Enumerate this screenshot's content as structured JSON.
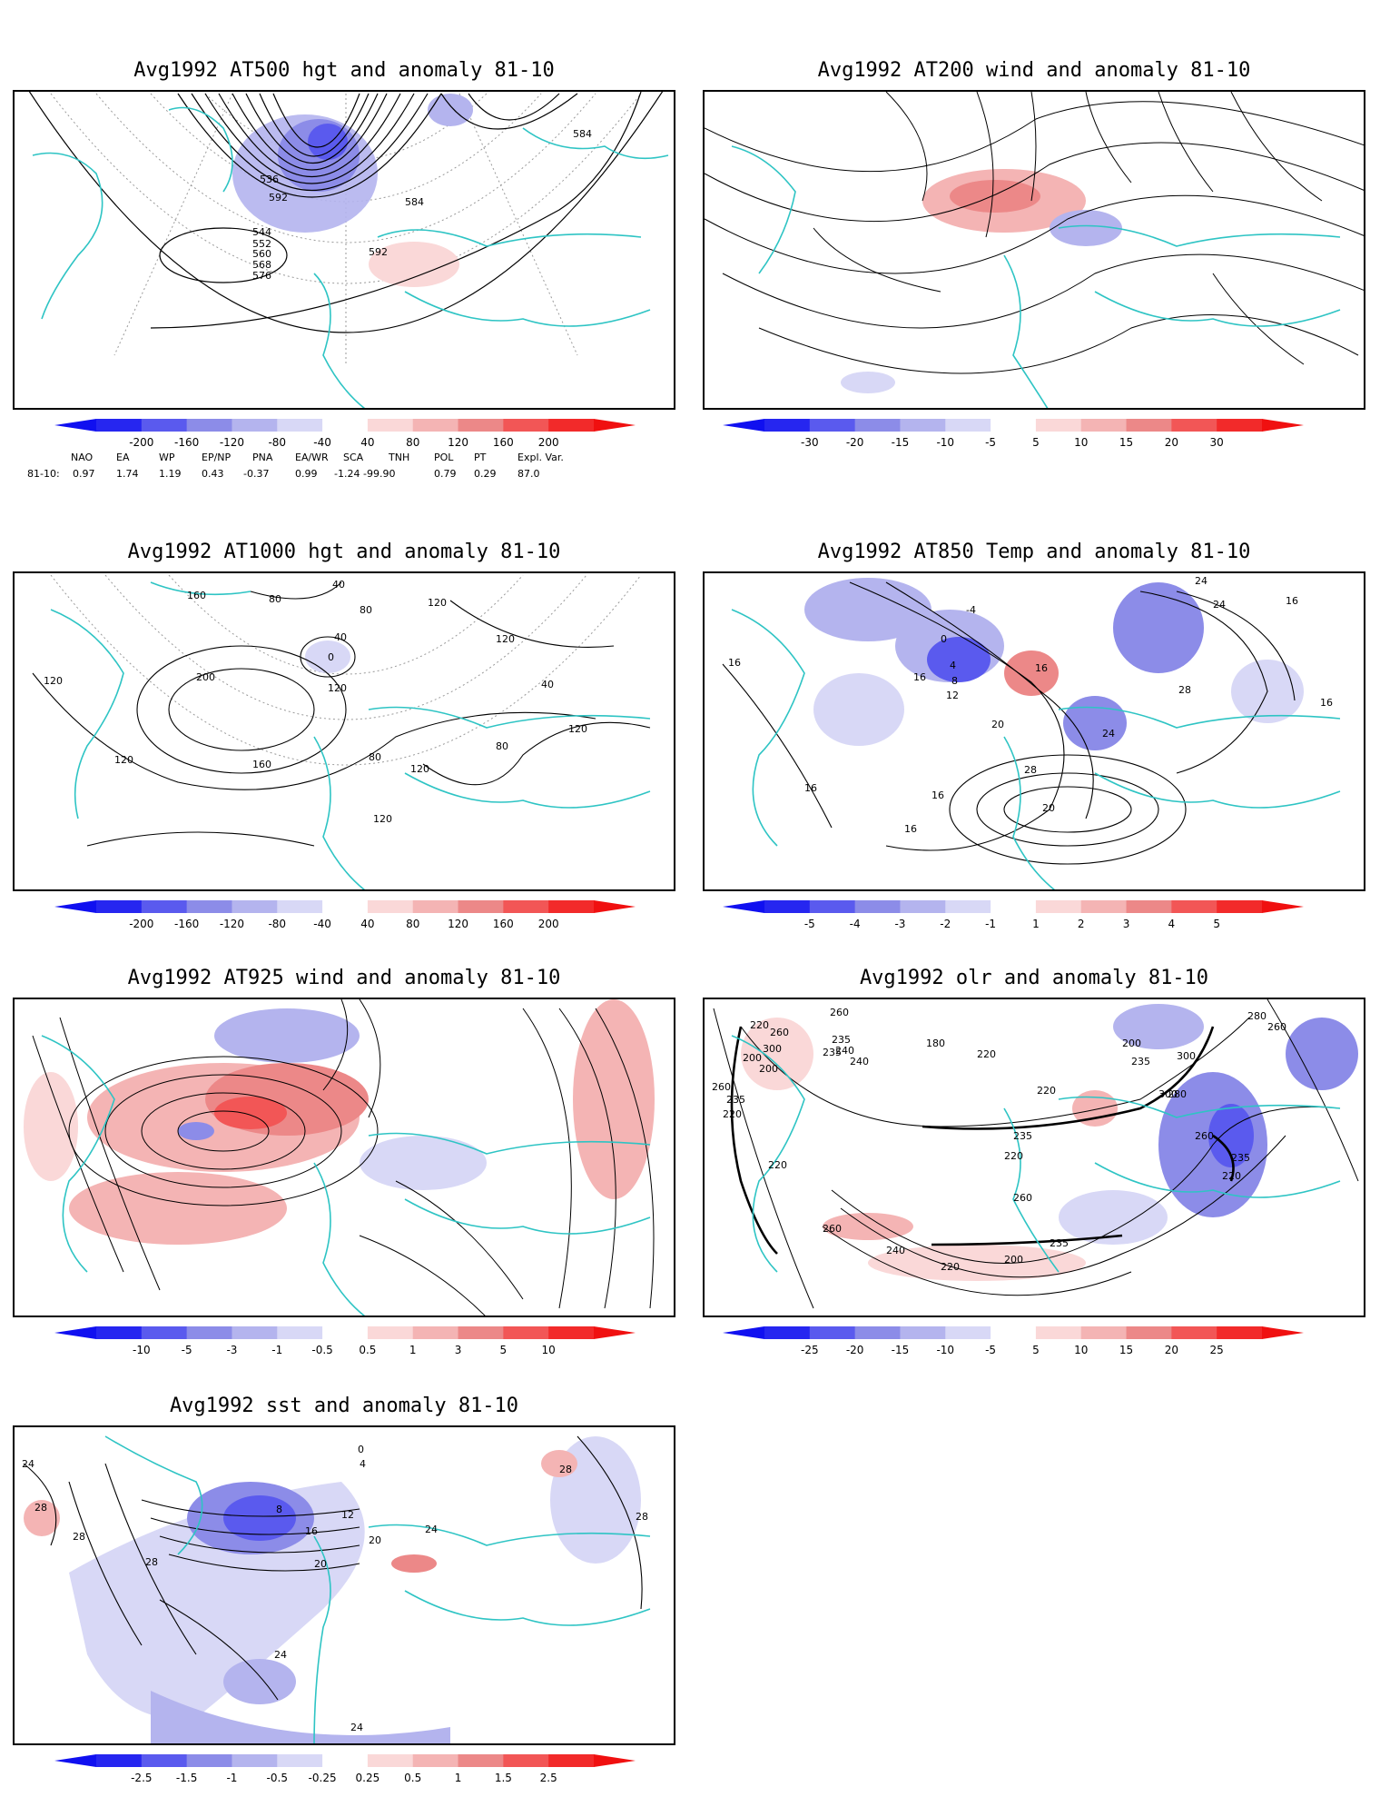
{
  "colors": {
    "coast": "#2ec4c4",
    "contour": "#000000",
    "grid": "#9a9a9a",
    "neg": [
      "#2626f0",
      "#5a5aee",
      "#8c8ce8",
      "#b4b4ee",
      "#d8d8f6"
    ],
    "pos": [
      "#fad8d8",
      "#f4b4b4",
      "#ec8888",
      "#f25656",
      "#f22a2a"
    ]
  },
  "panels": [
    {
      "id": "p500",
      "title": "Avg1992 AT500 hgt and anomaly 81-10",
      "variable": "500 hPa height",
      "colorbar": [
        "-200",
        "-160",
        "-120",
        "-80",
        "-40",
        "40",
        "80",
        "120",
        "160",
        "200"
      ],
      "contour_labels": [
        "536",
        "544",
        "552",
        "560",
        "568",
        "576",
        "584",
        "584",
        "592",
        "592"
      ]
    },
    {
      "id": "p200",
      "title": "Avg1992 AT200 wind and anomaly 81-10",
      "variable": "200 hPa wind streamlines",
      "colorbar": [
        "-30",
        "-20",
        "-15",
        "-10",
        "-5",
        "5",
        "10",
        "15",
        "20",
        "30"
      ],
      "contour_labels": []
    },
    {
      "id": "p1000",
      "title": "Avg1992 AT1000 hgt and anomaly 81-10",
      "variable": "1000 hPa height",
      "colorbar": [
        "-200",
        "-160",
        "-120",
        "-80",
        "-40",
        "40",
        "80",
        "120",
        "160",
        "200"
      ],
      "contour_labels": [
        "160",
        "40",
        "80",
        "80",
        "120",
        "40",
        "0",
        "200",
        "120",
        "120",
        "120",
        "40",
        "120",
        "120",
        "160",
        "80",
        "80",
        "120",
        "120"
      ]
    },
    {
      "id": "p850",
      "title": "Avg1992 AT850 Temp and anomaly 81-10",
      "variable": "850 hPa temperature",
      "colorbar": [
        "-5",
        "-4",
        "-3",
        "-2",
        "-1",
        "1",
        "2",
        "3",
        "4",
        "5"
      ],
      "contour_labels": [
        "-4",
        "0",
        "4",
        "8",
        "12",
        "16",
        "16",
        "20",
        "24",
        "28",
        "24",
        "24",
        "28",
        "20",
        "16",
        "16",
        "16",
        "16",
        "16",
        "16"
      ]
    },
    {
      "id": "p925",
      "title": "Avg1992 AT925 wind and anomaly 81-10",
      "variable": "925 hPa wind streamlines",
      "colorbar": [
        "-10",
        "-5",
        "-3",
        "-1",
        "-0.5",
        "0.5",
        "1",
        "3",
        "5",
        "10"
      ],
      "contour_labels": []
    },
    {
      "id": "polr",
      "title": "Avg1992 olr and anomaly 81-10",
      "variable": "outgoing longwave radiation",
      "colorbar": [
        "-25",
        "-20",
        "-15",
        "-10",
        "-5",
        "5",
        "10",
        "15",
        "20",
        "25"
      ],
      "contour_labels": [
        "235",
        "235",
        "220",
        "260",
        "260",
        "200",
        "300",
        "200",
        "260",
        "240",
        "235",
        "220",
        "180",
        "220",
        "235",
        "300",
        "280",
        "260",
        "235",
        "200",
        "220",
        "280",
        "260",
        "300",
        "240",
        "235",
        "220",
        "220",
        "260",
        "235",
        "200",
        "240",
        "220",
        "260",
        "220"
      ]
    },
    {
      "id": "psst",
      "title": "Avg1992 sst and anomaly 81-10",
      "variable": "sea surface temperature",
      "colorbar": [
        "-2.5",
        "-1.5",
        "-1",
        "-0.5",
        "-0.25",
        "0.25",
        "0.5",
        "1",
        "1.5",
        "2.5"
      ],
      "contour_labels": [
        "24",
        "28",
        "28",
        "28",
        "8",
        "12",
        "16",
        "20",
        "20",
        "24",
        "28",
        "28",
        "24",
        "24",
        "0",
        "4"
      ]
    }
  ],
  "teleconnections": {
    "header": [
      "NAO",
      "EA",
      "WP",
      "EP/NP",
      "PNA",
      "EA/WR",
      "SCA",
      "TNH",
      "POL",
      "PT",
      "Expl. Var."
    ],
    "row_label": "81-10:",
    "values": [
      "0.97",
      "1.74",
      "1.19",
      "0.43",
      "-0.37",
      "0.99",
      "-1.24",
      "-99.90",
      "0.79",
      "0.29",
      "87.0"
    ]
  }
}
